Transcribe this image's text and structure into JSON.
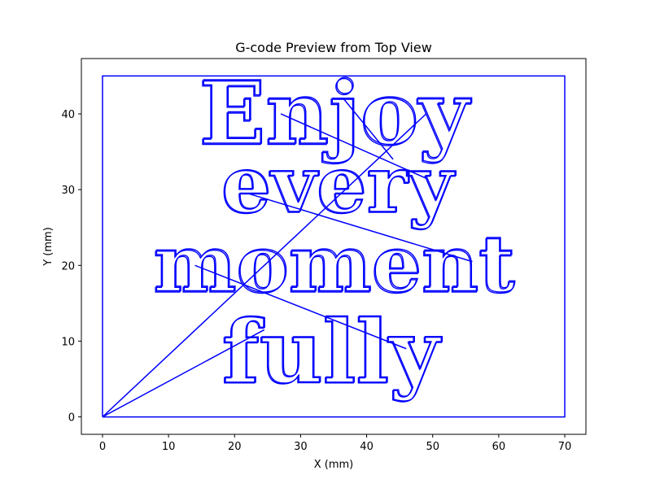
{
  "chart_data": {
    "type": "line",
    "title": "G-code Preview from Top View",
    "xlabel": "X (mm)",
    "ylabel": "Y (mm)",
    "xlim": [
      -3.2,
      73.2
    ],
    "ylim": [
      -2.3,
      47.3
    ],
    "xticks": [
      0,
      10,
      20,
      30,
      40,
      50,
      60,
      70
    ],
    "yticks": [
      0,
      10,
      20,
      30,
      40
    ],
    "grid": false,
    "line_color": "#0000ff",
    "series": [
      {
        "kind": "border",
        "x": [
          0,
          0,
          70,
          70,
          0
        ],
        "y": [
          0,
          45,
          45,
          0,
          0
        ]
      },
      {
        "kind": "travel",
        "x": [
          0,
          24.5
        ],
        "y": [
          0,
          11.5
        ]
      },
      {
        "kind": "travel",
        "x": [
          0,
          49.0
        ],
        "y": [
          0,
          40.0
        ]
      },
      {
        "kind": "travel",
        "x": [
          14.0,
          46.0
        ],
        "y": [
          20.0,
          9.0
        ]
      },
      {
        "kind": "travel",
        "x": [
          22.0,
          56.0
        ],
        "y": [
          29.5,
          20.5
        ]
      },
      {
        "kind": "travel",
        "x": [
          27.0,
          49.0
        ],
        "y": [
          40.0,
          31.5
        ]
      },
      {
        "kind": "travel",
        "x": [
          36.5,
          44.0
        ],
        "y": [
          42.0,
          34.0
        ]
      }
    ],
    "text_paths": [
      {
        "text": "Enjoy",
        "x_center": 35.0,
        "y_baseline": 36.0,
        "height_mm": 10.0
      },
      {
        "text": "every",
        "x_center": 35.5,
        "y_baseline": 27.0,
        "height_mm": 9.0
      },
      {
        "text": "moment",
        "x_center": 35.0,
        "y_baseline": 16.5,
        "height_mm": 9.0
      },
      {
        "text": "fully",
        "x_center": 34.5,
        "y_baseline": 4.5,
        "height_mm": 10.0
      }
    ]
  }
}
